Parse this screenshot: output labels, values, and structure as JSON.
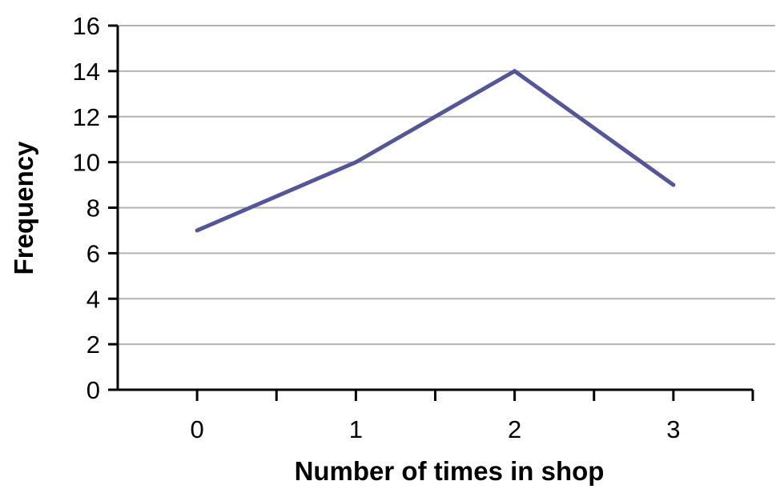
{
  "chart_data": {
    "type": "line",
    "title": "",
    "xlabel": "Number of times in shop",
    "ylabel": "Frequency",
    "x": [
      0,
      1,
      2,
      3
    ],
    "series": [
      {
        "values": [
          7,
          10,
          14,
          9
        ]
      }
    ],
    "xlim": [
      -0.5,
      3.5
    ],
    "ylim": [
      0,
      16
    ],
    "x_ticks": [
      0,
      1,
      2,
      3
    ],
    "y_ticks": [
      0,
      2,
      4,
      6,
      8,
      10,
      12,
      14,
      16
    ],
    "grid": "horizontal",
    "legend": "none",
    "colors": {
      "line": "#55569a",
      "grid": "#b3b3b3",
      "axis": "#000000"
    }
  }
}
